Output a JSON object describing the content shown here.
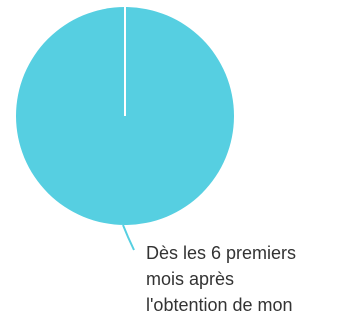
{
  "chart_data": {
    "type": "pie",
    "slices": [
      {
        "label_lines": [
          "Dès les 6 premiers",
          "mois après",
          "l'obtention de mon"
        ],
        "value": 100
      }
    ],
    "title": "",
    "legend": "none"
  },
  "colors": {
    "slice": "#56CFE1",
    "separator": "#ffffff",
    "leader_line": "#56CFE1",
    "label_text": "#333333"
  }
}
